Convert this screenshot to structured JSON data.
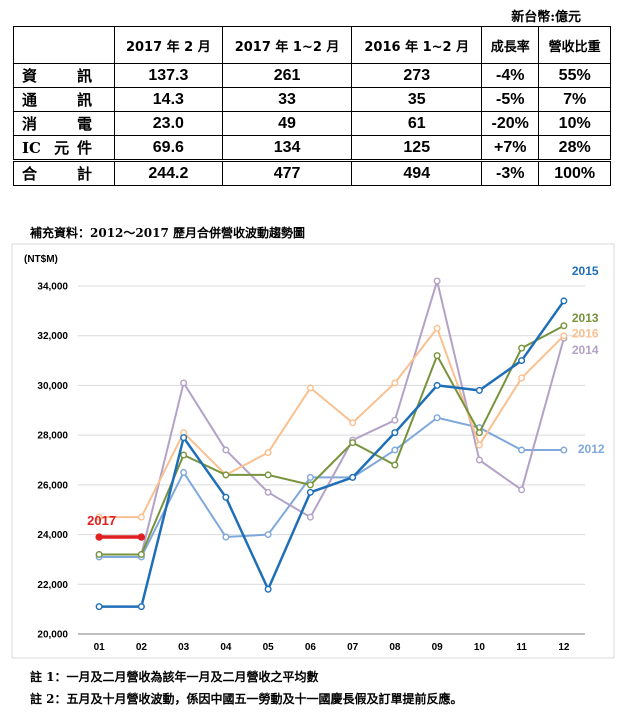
{
  "currency_note": "新台幣:億元",
  "table": {
    "headers": [
      "",
      "2017 年 2 月",
      "2017 年 1~2 月",
      "2016 年 1~2 月",
      "成長率",
      "營收比重"
    ],
    "rows": [
      {
        "label": "資訊",
        "values": [
          "137.3",
          "261",
          "273",
          "-4%",
          "55%"
        ]
      },
      {
        "label": "通訊",
        "values": [
          "14.3",
          "33",
          "35",
          "-5%",
          "7%"
        ]
      },
      {
        "label": "消電",
        "values": [
          "23.0",
          "49",
          "61",
          "-20%",
          "10%"
        ]
      },
      {
        "label": "IC 元件",
        "values": [
          "69.6",
          "134",
          "125",
          "+7%",
          "28%"
        ]
      }
    ],
    "total": {
      "label": "合計",
      "values": [
        "244.2",
        "477",
        "494",
        "-3%",
        "100%"
      ]
    }
  },
  "supplement_title": "補充資料：2012～2017 歷月合併營收波動趨勢圖",
  "chart_data": {
    "type": "line",
    "ylabel": "(NT$M)",
    "categories": [
      "01",
      "02",
      "03",
      "04",
      "05",
      "06",
      "07",
      "08",
      "09",
      "10",
      "11",
      "12"
    ],
    "ylim": [
      20000,
      34000
    ],
    "yticks": [
      20000,
      22000,
      24000,
      26000,
      28000,
      30000,
      32000,
      34000
    ],
    "ytick_labels": [
      "20,000",
      "22,000",
      "24,000",
      "26,000",
      "28,000",
      "30,000",
      "32,000",
      "34,000"
    ],
    "grid": true,
    "series": [
      {
        "name": "2012",
        "color": "#7fa8db",
        "values": [
          23100,
          23100,
          26500,
          23900,
          24000,
          26300,
          26300,
          27400,
          28700,
          28300,
          27400,
          27400
        ]
      },
      {
        "name": "2013",
        "color": "#77933c",
        "values": [
          23200,
          23200,
          27200,
          26400,
          26400,
          26000,
          27700,
          26800,
          31200,
          28100,
          31500,
          32400
        ]
      },
      {
        "name": "2014",
        "color": "#b3a2c7",
        "values": [
          23200,
          23200,
          30100,
          27400,
          25700,
          24700,
          27800,
          28600,
          34200,
          27000,
          25800,
          31900
        ]
      },
      {
        "name": "2015",
        "color": "#1f6fb8",
        "values": [
          21100,
          21100,
          27900,
          25500,
          21800,
          25700,
          26300,
          28100,
          30000,
          29800,
          31000,
          33400
        ]
      },
      {
        "name": "2016",
        "color": "#fac090",
        "values": [
          24700,
          24700,
          28100,
          26400,
          27300,
          29900,
          28500,
          30100,
          32300,
          27600,
          30300,
          32000
        ]
      },
      {
        "name": "2017",
        "color": "#e02020",
        "values": [
          23900,
          23900,
          null,
          null,
          null,
          null,
          null,
          null,
          null,
          null,
          null,
          null
        ]
      }
    ]
  },
  "notes": [
    "註 1：一月及二月營收為該年一月及二月營收之平均數",
    "註 2：五月及十月營收波動，係因中國五一勞動及十一國慶長假及訂單提前反應。"
  ]
}
